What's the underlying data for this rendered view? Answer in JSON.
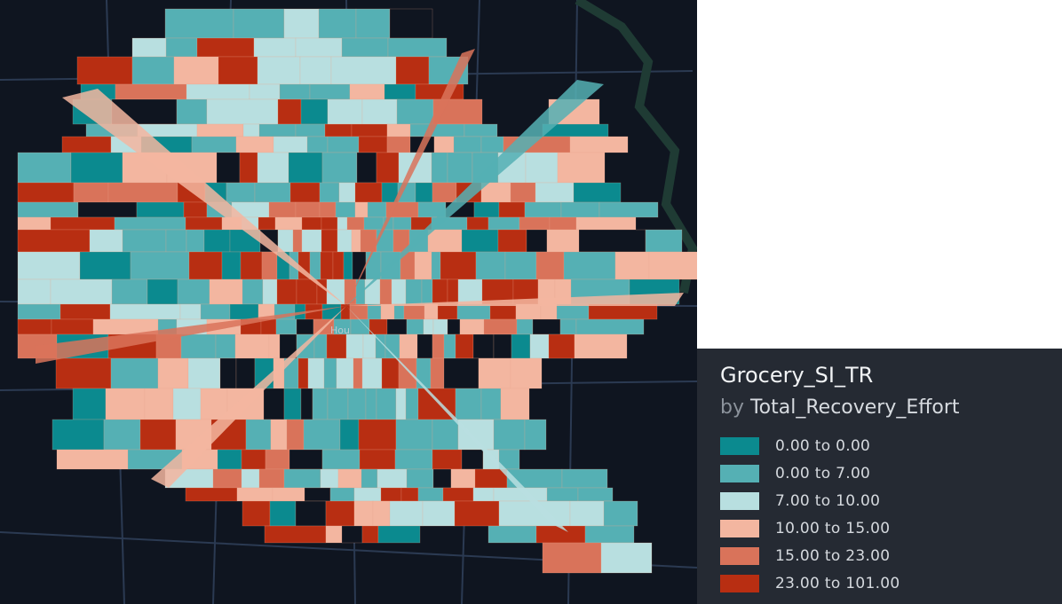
{
  "map": {
    "center_label": "Hou",
    "background": "#0f1520",
    "road_color": "#2b3a52",
    "water_color": "#1f3b34"
  },
  "legend": {
    "title": "Grocery_SI_TR",
    "by_word": "by",
    "field": "Total_Recovery_Effort",
    "classes": [
      {
        "label": "0.00 to 0.00",
        "color": "#0b8a8f"
      },
      {
        "label": "0.00 to 7.00",
        "color": "#55b0b4"
      },
      {
        "label": "7.00 to 10.00",
        "color": "#b8dfe0"
      },
      {
        "label": "10.00 to 15.00",
        "color": "#f3b6a0"
      },
      {
        "label": "15.00 to 23.00",
        "color": "#d9735a"
      },
      {
        "label": "23.00 to 101.00",
        "color": "#b82e12"
      }
    ]
  }
}
